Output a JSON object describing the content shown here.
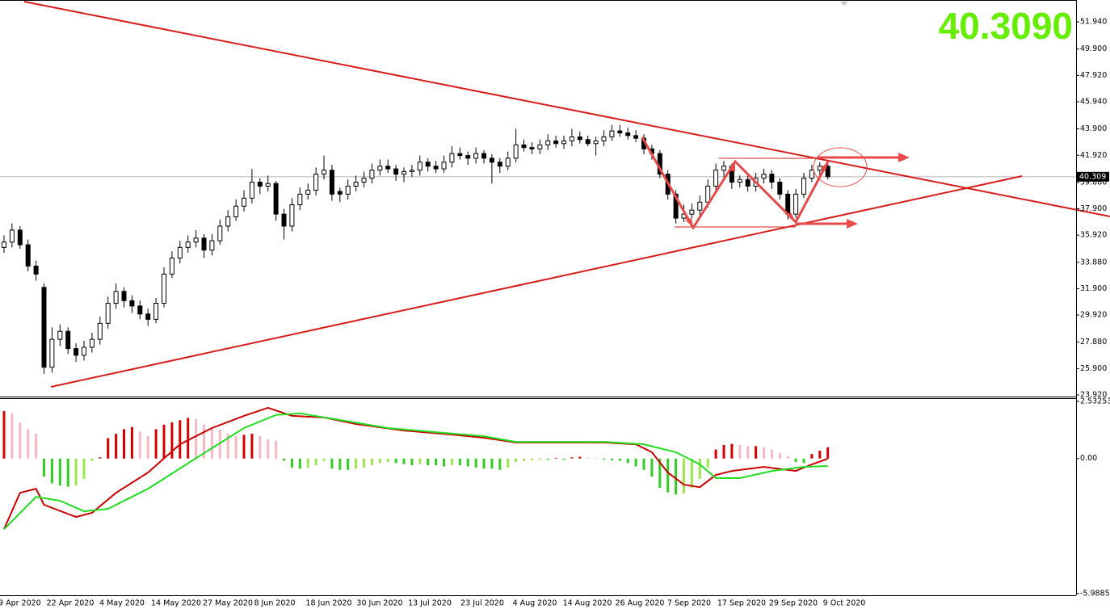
{
  "chart_data": [
    {
      "type": "candlestick",
      "ylim": [
        23.8,
        53.4
      ],
      "yticks": [
        {
          "value": 51.94,
          "label": "51.940"
        },
        {
          "value": 49.9,
          "label": "49.900"
        },
        {
          "value": 47.92,
          "label": "47.920"
        },
        {
          "value": 45.94,
          "label": "45.940"
        },
        {
          "value": 43.9,
          "label": "43.900"
        },
        {
          "value": 41.92,
          "label": "41.920"
        },
        {
          "value": 39.88,
          "label": "39.880"
        },
        {
          "value": 37.9,
          "label": "37.900"
        },
        {
          "value": 35.92,
          "label": "35.920"
        },
        {
          "value": 33.88,
          "label": "33.880"
        },
        {
          "value": 31.9,
          "label": "31.900"
        },
        {
          "value": 29.92,
          "label": "29.920"
        },
        {
          "value": 27.88,
          "label": "27.880"
        },
        {
          "value": 25.9,
          "label": "25.900"
        },
        {
          "value": 23.92,
          "label": "23.920"
        }
      ],
      "up_color": "#ffffff",
      "down_color": "#000000",
      "last_price": {
        "value": 40.309,
        "label": "40.309"
      },
      "price_display": {
        "value": 40.309,
        "label": "40.3090"
      },
      "x_labels": [
        "9 Apr 2020",
        "22 Apr 2020",
        "4 May 2020",
        "14 May 2020",
        "27 May 2020",
        "8 Jun 2020",
        "18 Jun 2020",
        "30 Jun 2020",
        "13 Jul 2020",
        "23 Jul 2020",
        "4 Aug 2020",
        "14 Aug 2020",
        "26 Aug 2020",
        "7 Sep 2020",
        "17 Sep 2020",
        "29 Sep 2020",
        "9 Oct 2020"
      ],
      "candles": [
        [
          35.0,
          35.9,
          34.6,
          35.4
        ],
        [
          35.4,
          36.8,
          35.0,
          36.3
        ],
        [
          36.3,
          36.6,
          34.9,
          35.2
        ],
        [
          35.2,
          35.6,
          33.2,
          33.6
        ],
        [
          33.6,
          34.0,
          32.5,
          33.0
        ],
        [
          32.0,
          32.3,
          25.5,
          26.0
        ],
        [
          26.0,
          29.0,
          25.6,
          28.1
        ],
        [
          28.1,
          29.2,
          27.6,
          28.7
        ],
        [
          28.7,
          29.0,
          27.0,
          27.4
        ],
        [
          27.4,
          27.8,
          26.4,
          26.9
        ],
        [
          26.9,
          28.0,
          26.5,
          27.5
        ],
        [
          27.5,
          28.6,
          27.1,
          28.1
        ],
        [
          28.1,
          29.8,
          27.7,
          29.3
        ],
        [
          29.3,
          31.3,
          28.9,
          30.8
        ],
        [
          30.8,
          32.3,
          30.4,
          31.7
        ],
        [
          31.7,
          32.0,
          30.5,
          31.0
        ],
        [
          31.0,
          31.4,
          30.1,
          30.6
        ],
        [
          30.6,
          31.0,
          29.6,
          30.0
        ],
        [
          30.0,
          30.4,
          29.1,
          29.6
        ],
        [
          29.6,
          31.2,
          29.3,
          30.8
        ],
        [
          30.8,
          33.5,
          30.5,
          33.0
        ],
        [
          33.0,
          34.7,
          32.7,
          34.2
        ],
        [
          34.2,
          35.5,
          33.8,
          35.0
        ],
        [
          35.0,
          35.9,
          34.6,
          35.4
        ],
        [
          35.4,
          36.3,
          35.0,
          35.7
        ],
        [
          35.7,
          36.0,
          34.2,
          34.8
        ],
        [
          34.8,
          36.0,
          34.4,
          35.5
        ],
        [
          35.5,
          37.1,
          35.2,
          36.6
        ],
        [
          36.6,
          37.8,
          36.2,
          37.3
        ],
        [
          37.3,
          38.6,
          37.0,
          38.1
        ],
        [
          38.1,
          39.3,
          37.7,
          38.7
        ],
        [
          38.7,
          40.9,
          38.3,
          39.9
        ],
        [
          39.9,
          40.2,
          39.0,
          39.6
        ],
        [
          39.6,
          40.4,
          39.2,
          39.8
        ],
        [
          39.8,
          40.0,
          37.0,
          37.5
        ],
        [
          37.5,
          37.9,
          35.6,
          36.6
        ],
        [
          36.6,
          38.7,
          36.2,
          38.2
        ],
        [
          38.2,
          39.5,
          37.8,
          39.0
        ],
        [
          39.0,
          39.8,
          38.6,
          39.3
        ],
        [
          39.3,
          41.0,
          38.9,
          40.5
        ],
        [
          40.5,
          41.9,
          40.1,
          40.8
        ],
        [
          40.8,
          41.2,
          38.5,
          39.0
        ],
        [
          39.2,
          39.5,
          38.4,
          39.0
        ],
        [
          39.0,
          40.1,
          38.6,
          39.6
        ],
        [
          39.6,
          40.4,
          39.2,
          39.9
        ],
        [
          39.9,
          40.7,
          39.5,
          40.2
        ],
        [
          40.2,
          41.3,
          39.8,
          40.8
        ],
        [
          40.8,
          41.6,
          40.4,
          41.1
        ],
        [
          41.1,
          41.6,
          40.6,
          40.9
        ],
        [
          40.9,
          41.2,
          40.0,
          40.5
        ],
        [
          40.5,
          41.0,
          39.9,
          40.7
        ],
        [
          40.7,
          41.2,
          40.3,
          40.8
        ],
        [
          40.8,
          41.9,
          40.4,
          41.4
        ],
        [
          41.4,
          41.7,
          40.7,
          41.1
        ],
        [
          41.1,
          41.5,
          40.6,
          40.9
        ],
        [
          40.9,
          41.9,
          40.6,
          41.4
        ],
        [
          41.4,
          42.6,
          41.0,
          42.05
        ],
        [
          42.05,
          42.5,
          41.6,
          41.9
        ],
        [
          41.9,
          42.2,
          41.2,
          41.7
        ],
        [
          41.7,
          42.5,
          41.3,
          42.05
        ],
        [
          42.05,
          42.3,
          41.3,
          41.7
        ],
        [
          41.7,
          42.0,
          39.8,
          41.4
        ],
        [
          41.4,
          41.7,
          40.6,
          41.1
        ],
        [
          41.1,
          42.2,
          40.8,
          41.7
        ],
        [
          41.7,
          43.9,
          41.4,
          42.7
        ],
        [
          42.7,
          43.1,
          42.2,
          42.5
        ],
        [
          42.5,
          42.9,
          42.0,
          42.4
        ],
        [
          42.4,
          43.1,
          42.0,
          42.7
        ],
        [
          42.7,
          43.5,
          42.3,
          43.0
        ],
        [
          43.0,
          43.4,
          42.5,
          42.8
        ],
        [
          42.8,
          43.4,
          42.4,
          43.0
        ],
        [
          43.0,
          43.9,
          42.6,
          43.3
        ],
        [
          43.3,
          43.7,
          42.8,
          43.1
        ],
        [
          43.1,
          43.4,
          42.6,
          42.8
        ],
        [
          42.8,
          43.3,
          41.9,
          43.0
        ],
        [
          43.0,
          43.8,
          42.6,
          43.3
        ],
        [
          43.3,
          44.2,
          43.0,
          43.75
        ],
        [
          43.75,
          44.2,
          43.3,
          43.6
        ],
        [
          43.6,
          44.0,
          43.1,
          43.4
        ],
        [
          43.4,
          43.8,
          42.9,
          43.2
        ],
        [
          43.2,
          43.5,
          42.0,
          42.4
        ],
        [
          42.4,
          42.7,
          41.6,
          42.05
        ],
        [
          42.05,
          42.3,
          40.2,
          40.5
        ],
        [
          40.5,
          40.8,
          38.6,
          39.0
        ],
        [
          39.0,
          39.3,
          36.8,
          37.2
        ],
        [
          37.2,
          38.2,
          36.9,
          37.5
        ],
        [
          37.5,
          38.3,
          37.2,
          37.8
        ],
        [
          37.8,
          38.9,
          37.4,
          38.4
        ],
        [
          38.4,
          40.1,
          38.0,
          39.6
        ],
        [
          39.6,
          41.3,
          39.2,
          40.8
        ],
        [
          40.8,
          41.5,
          40.3,
          41.1
        ],
        [
          41.1,
          41.3,
          39.4,
          39.9
        ],
        [
          39.9,
          40.4,
          39.5,
          40.1
        ],
        [
          40.1,
          40.4,
          39.2,
          39.6
        ],
        [
          39.6,
          40.6,
          39.2,
          40.2
        ],
        [
          40.2,
          40.9,
          39.8,
          40.5
        ],
        [
          40.5,
          40.8,
          39.4,
          39.9
        ],
        [
          39.9,
          40.2,
          38.6,
          39.0
        ],
        [
          39.0,
          39.3,
          37.1,
          37.5
        ],
        [
          37.5,
          39.4,
          37.2,
          39.0
        ],
        [
          39.0,
          40.6,
          38.7,
          40.2
        ],
        [
          40.2,
          41.2,
          39.9,
          40.8
        ],
        [
          40.8,
          41.4,
          40.4,
          41.1
        ],
        [
          41.1,
          41.3,
          40.1,
          40.309
        ]
      ]
    },
    {
      "type": "macd",
      "ylim": [
        -5.98851,
        2.53253
      ],
      "yticks": [
        2.53253,
        {
          "value": 0,
          "label": "0.00"
        },
        -5.98851
      ],
      "histogram": {
        "up_strong": "#d40000",
        "up_weak": "#f7b8c4",
        "down_strong": "#33cc22",
        "down_weak": "#9be84a",
        "values": [
          2.1,
          2.0,
          1.6,
          1.3,
          1.1,
          -0.8,
          -1.1,
          -1.2,
          -1.25,
          -1.2,
          -0.9,
          -0.1,
          0.05,
          0.9,
          1.1,
          1.3,
          1.4,
          1.2,
          1.0,
          1.3,
          1.5,
          1.6,
          1.7,
          1.8,
          1.75,
          1.5,
          1.4,
          1.3,
          1.1,
          1.0,
          1.05,
          1.1,
          1.0,
          0.85,
          0.8,
          -0.1,
          -0.4,
          -0.45,
          -0.4,
          -0.3,
          -0.1,
          -0.45,
          -0.5,
          -0.5,
          -0.45,
          -0.4,
          -0.3,
          -0.2,
          -0.15,
          -0.2,
          -0.25,
          -0.3,
          -0.25,
          -0.3,
          -0.3,
          -0.35,
          -0.3,
          -0.3,
          -0.35,
          -0.4,
          -0.45,
          -0.45,
          -0.5,
          -0.4,
          -0.15,
          -0.1,
          -0.08,
          -0.05,
          -0.05,
          0.03,
          -0.05,
          0.05,
          0.08,
          0.04,
          0.02,
          -0.05,
          -0.08,
          -0.1,
          -0.2,
          -0.35,
          -0.5,
          -0.8,
          -1.3,
          -1.5,
          -1.6,
          -1.55,
          -1.3,
          -0.9,
          -0.4,
          0.4,
          0.6,
          0.65,
          0.6,
          0.55,
          0.55,
          0.5,
          0.4,
          0.25,
          0.1,
          -0.15,
          -0.2,
          0.2,
          0.35,
          0.5
        ]
      },
      "series": [
        {
          "color": "#cc0000",
          "x": [
            0,
            2,
            4,
            5,
            9,
            11,
            14,
            18,
            22,
            26,
            30,
            33,
            36,
            40,
            44,
            50,
            56,
            60,
            64,
            70,
            75,
            79,
            81,
            83,
            85,
            87,
            89,
            91,
            95,
            99,
            101,
            103
          ],
          "values": [
            -3.13,
            -1.52,
            -1.34,
            -2.05,
            -2.59,
            -2.41,
            -1.52,
            -0.62,
            0.63,
            1.35,
            1.89,
            2.25,
            1.89,
            1.82,
            1.53,
            1.24,
            1.06,
            0.92,
            0.71,
            0.71,
            0.71,
            0.63,
            0.28,
            -0.62,
            -1.16,
            -1.27,
            -0.73,
            -0.55,
            -0.37,
            -0.55,
            -0.26,
            -0.01
          ]
        },
        {
          "color": "#22dd22",
          "x": [
            0,
            4,
            7,
            10,
            13,
            18,
            22,
            26,
            30,
            34,
            37,
            42,
            48,
            54,
            60,
            64,
            70,
            75,
            80,
            84,
            87,
            89,
            92,
            96,
            100,
            103
          ],
          "values": [
            -3.13,
            -1.7,
            -1.87,
            -2.34,
            -2.23,
            -1.34,
            -0.44,
            0.46,
            1.35,
            1.93,
            2.0,
            1.71,
            1.35,
            1.17,
            0.99,
            0.74,
            0.74,
            0.74,
            0.63,
            0.28,
            -0.26,
            -0.87,
            -0.87,
            -0.55,
            -0.37,
            -0.33
          ]
        }
      ]
    }
  ]
}
